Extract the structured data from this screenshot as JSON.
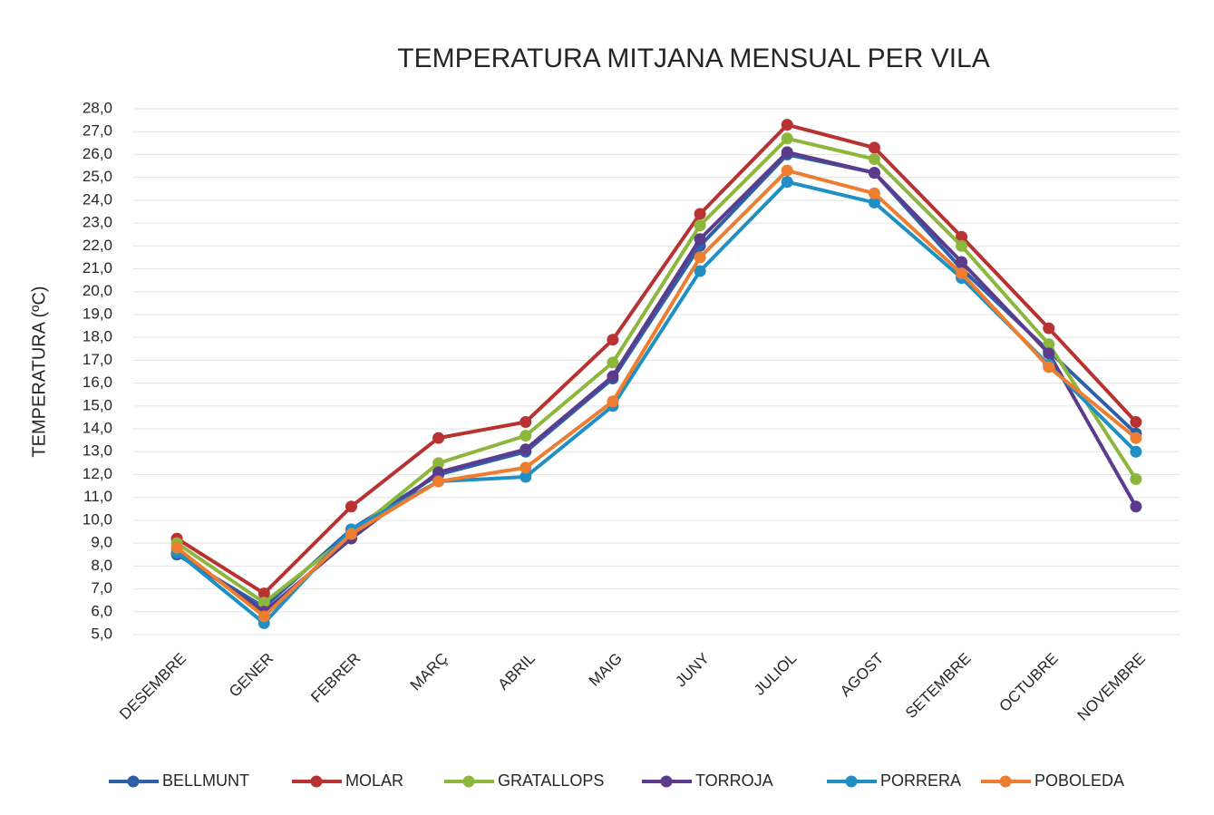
{
  "chart_data": {
    "type": "line",
    "title": "TEMPERATURA MITJANA MENSUAL PER VILA",
    "y_label": "TEMPERATURA (ºC)",
    "categories": [
      "DESEMBRE",
      "GENER",
      "FEBRER",
      "MARÇ",
      "ABRIL",
      "MAIG",
      "JUNY",
      "JULIOL",
      "AGOST",
      "SETEMBRE",
      "OCTUBRE",
      "NOVEMBRE"
    ],
    "series": [
      {
        "name": "BELLMUNT",
        "color": "#2e5fa8",
        "values": [
          8.5,
          6.2,
          9.6,
          12.0,
          13.0,
          16.2,
          22.0,
          26.0,
          25.2,
          21.0,
          17.4,
          13.8
        ]
      },
      {
        "name": "MOLAR",
        "color": "#b83232",
        "values": [
          9.2,
          6.8,
          10.6,
          13.6,
          14.3,
          17.9,
          23.4,
          27.3,
          26.3,
          22.4,
          18.4,
          14.3
        ]
      },
      {
        "name": "GRATALLOPS",
        "color": "#8db63c",
        "values": [
          9.0,
          6.4,
          9.4,
          12.5,
          13.7,
          16.9,
          22.9,
          26.7,
          25.8,
          22.0,
          17.7,
          11.8
        ]
      },
      {
        "name": "TORROJA",
        "color": "#5b3b8c",
        "values": [
          8.6,
          6.0,
          9.2,
          12.1,
          13.1,
          16.3,
          22.3,
          26.1,
          25.2,
          21.3,
          17.3,
          10.6
        ]
      },
      {
        "name": "PORRERA",
        "color": "#1f8fc4",
        "values": [
          8.6,
          5.5,
          9.6,
          11.7,
          11.9,
          15.0,
          20.9,
          24.8,
          23.9,
          20.6,
          16.8,
          13.0
        ]
      },
      {
        "name": "POBOLEDA",
        "color": "#ed7d31",
        "values": [
          8.8,
          5.8,
          9.4,
          11.7,
          12.3,
          15.2,
          21.5,
          25.3,
          24.3,
          20.8,
          16.7,
          13.6
        ]
      }
    ],
    "ylim": [
      5,
      28
    ],
    "yticks": [
      {
        "value": 5,
        "label": "5,0"
      },
      {
        "value": 6,
        "label": "6,0"
      },
      {
        "value": 7,
        "label": "7,0"
      },
      {
        "value": 8,
        "label": "8,0"
      },
      {
        "value": 9,
        "label": "9,0"
      },
      {
        "value": 10,
        "label": "10,0"
      },
      {
        "value": 11,
        "label": "11,0"
      },
      {
        "value": 12,
        "label": "12,0"
      },
      {
        "value": 13,
        "label": "13,0"
      },
      {
        "value": 14,
        "label": "14,0"
      },
      {
        "value": 15,
        "label": "15,0"
      },
      {
        "value": 16,
        "label": "16,0"
      },
      {
        "value": 17,
        "label": "17,0"
      },
      {
        "value": 18,
        "label": "18,0"
      },
      {
        "value": 19,
        "label": "19,0"
      },
      {
        "value": 20,
        "label": "20,0"
      },
      {
        "value": 21,
        "label": "21,0"
      },
      {
        "value": 22,
        "label": "22,0"
      },
      {
        "value": 23,
        "label": "23,0"
      },
      {
        "value": 24,
        "label": "24,0"
      },
      {
        "value": 25,
        "label": "25,0"
      },
      {
        "value": 26,
        "label": "26,0"
      },
      {
        "value": 27,
        "label": "27,0"
      },
      {
        "value": 28,
        "label": "28,0"
      }
    ],
    "grid": true,
    "legend": "bottom"
  }
}
